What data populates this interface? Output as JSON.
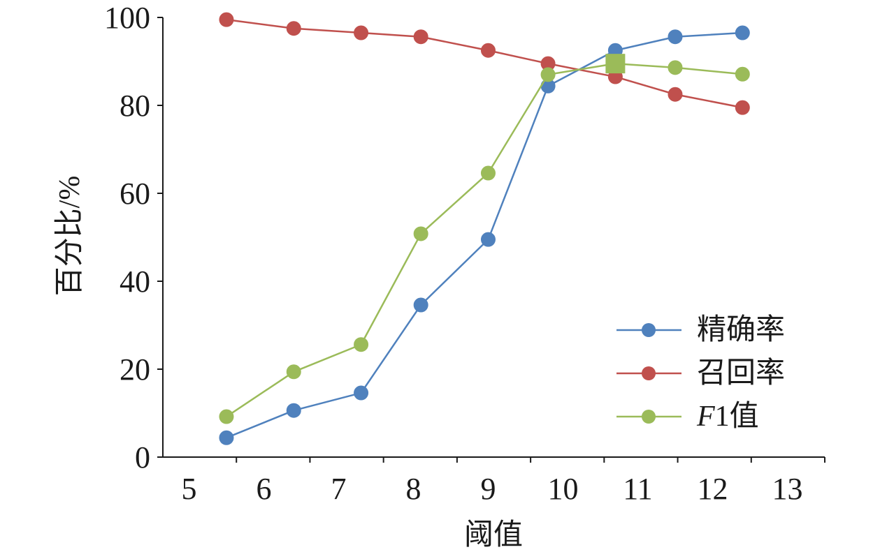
{
  "chart_data": {
    "type": "line",
    "title": "",
    "xlabel": "阈值",
    "ylabel": "百分比/%",
    "x_ticks": [
      5,
      6,
      7,
      8,
      9,
      10,
      11,
      12,
      13
    ],
    "y_ticks": [
      0,
      20,
      40,
      60,
      80,
      100
    ],
    "xlim": [
      4.65,
      13.5
    ],
    "ylim": [
      0,
      100
    ],
    "grid": false,
    "legend_position": "bottom-right",
    "x": [
      5.5,
      6.4,
      7.3,
      8.1,
      9.0,
      9.8,
      10.7,
      11.5,
      12.4
    ],
    "series": [
      {
        "name": "精确率",
        "color": "#4f81bd",
        "marker": "circle",
        "values": [
          4.4,
          10.6,
          14.6,
          34.6,
          49.5,
          84.4,
          92.5,
          95.6,
          96.5
        ]
      },
      {
        "name": "召回率",
        "color": "#c0504d",
        "marker": "circle",
        "values": [
          99.5,
          97.5,
          96.5,
          95.6,
          92.5,
          89.5,
          86.5,
          82.5,
          79.5
        ]
      },
      {
        "name": "F1值",
        "color": "#9bbb59",
        "marker": "circle",
        "square_marker_index": 6,
        "values": [
          9.2,
          19.4,
          25.6,
          50.8,
          64.6,
          87.0,
          89.5,
          88.6,
          87.1
        ]
      }
    ]
  }
}
